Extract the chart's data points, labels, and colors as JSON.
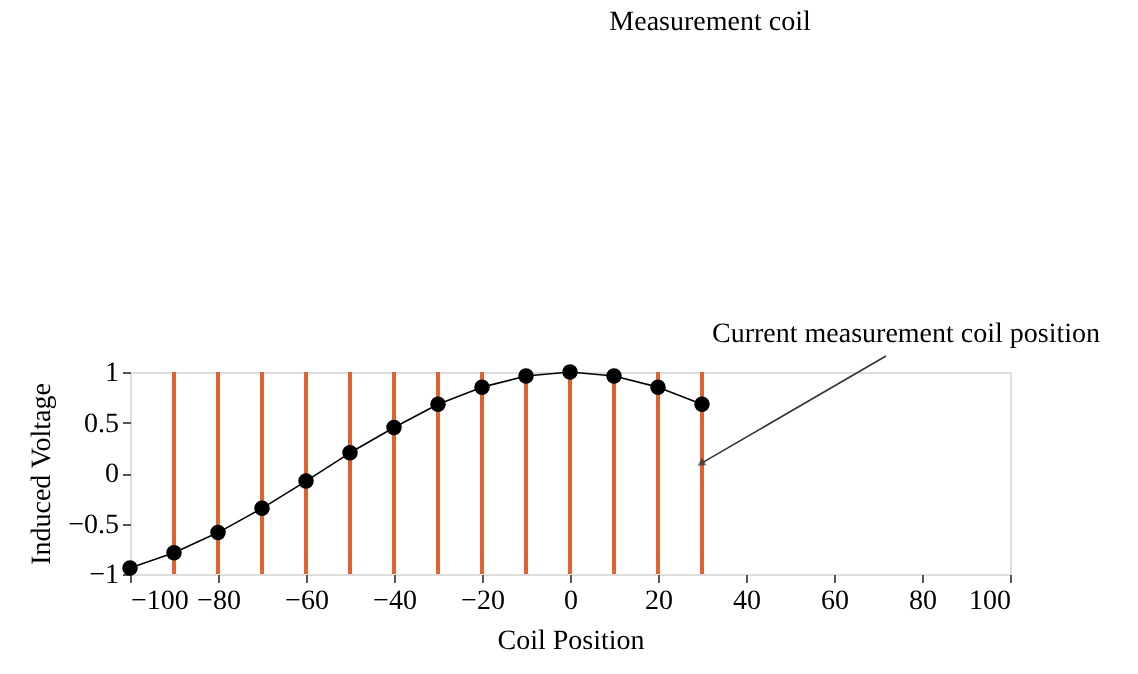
{
  "chart_data": {
    "type": "line",
    "xlabel": "Coil Position",
    "ylabel": "Induced Voltage",
    "x": [
      -100,
      -90,
      -80,
      -70,
      -60,
      -50,
      -40,
      -30,
      -20,
      -10,
      0,
      10,
      20,
      30
    ],
    "series": [
      {
        "color": "#000000",
        "values": [
          -0.94,
          -0.79,
          -0.59,
          -0.35,
          -0.08,
          0.2,
          0.45,
          0.68,
          0.85,
          0.96,
          1.0,
          0.96,
          0.85,
          0.68
        ]
      }
    ],
    "xlim": [
      -100,
      100
    ],
    "xticks": [
      -100,
      -80,
      -60,
      -40,
      -20,
      0,
      20,
      40,
      60,
      80,
      100
    ],
    "ylim": [
      -1,
      1
    ],
    "yticks": [
      -1,
      -0.5,
      0,
      0.5,
      1
    ],
    "ref_lines": [
      {
        "axis": "x",
        "value": -90,
        "color": "#e0622e"
      },
      {
        "axis": "x",
        "value": -80,
        "color": "#e0622e"
      },
      {
        "axis": "x",
        "value": -70,
        "color": "#e0622e"
      },
      {
        "axis": "x",
        "value": -60,
        "color": "#e0622e"
      },
      {
        "axis": "x",
        "value": -50,
        "color": "#e0622e"
      },
      {
        "axis": "x",
        "value": -40,
        "color": "#e0622e"
      },
      {
        "axis": "x",
        "value": -30,
        "color": "#e0622e"
      },
      {
        "axis": "x",
        "value": -20,
        "color": "#e0622e"
      },
      {
        "axis": "x",
        "value": -10,
        "color": "#e0622e"
      },
      {
        "axis": "x",
        "value": 0,
        "color": "#e0622e"
      },
      {
        "axis": "x",
        "value": 10,
        "color": "#e0622e"
      },
      {
        "axis": "x",
        "value": 20,
        "color": "#e0622e"
      },
      {
        "axis": "x",
        "value": 30,
        "color": "#e0622e"
      }
    ],
    "annotations": [
      "Measurement coil",
      {
        "text": "Current measurement coil position",
        "x": 30,
        "y": 0.1
      }
    ],
    "marker": "circle",
    "line_style": "solid",
    "grid": false
  }
}
